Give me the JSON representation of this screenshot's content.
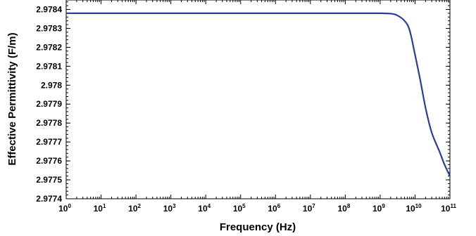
{
  "chart_data": {
    "type": "line",
    "title": "",
    "xlabel": "Frequency (Hz)",
    "ylabel": "Effective Permittivity (F/m)",
    "x_scale": "log",
    "xlim": [
      1,
      100000000000
    ],
    "ylim": [
      2.9774,
      2.97845
    ],
    "x_ticks": [
      {
        "base": "10",
        "exp": "0"
      },
      {
        "base": "10",
        "exp": "1"
      },
      {
        "base": "10",
        "exp": "2"
      },
      {
        "base": "10",
        "exp": "3"
      },
      {
        "base": "10",
        "exp": "4"
      },
      {
        "base": "10",
        "exp": "5"
      },
      {
        "base": "10",
        "exp": "6"
      },
      {
        "base": "10",
        "exp": "7"
      },
      {
        "base": "10",
        "exp": "8"
      },
      {
        "base": "10",
        "exp": "9"
      },
      {
        "base": "10",
        "exp": "10"
      },
      {
        "base": "10",
        "exp": "11"
      }
    ],
    "y_ticks": [
      "2.9774",
      "2.9775",
      "2.9776",
      "2.9777",
      "2.9778",
      "2.9779",
      "2.978",
      "2.9781",
      "2.9782",
      "2.9783",
      "2.9784"
    ],
    "grid": false,
    "line_color": "#2b3d9a",
    "series": [
      {
        "x": [
          1,
          10,
          100,
          1000,
          10000,
          100000,
          1000000,
          10000000,
          100000000,
          1000000000,
          2000000000,
          3000000000,
          5000000000,
          7000000000,
          10000000000,
          14000000000,
          20000000000,
          30000000000,
          50000000000,
          70000000000,
          100000000000
        ],
        "y": [
          2.97838,
          2.97838,
          2.97838,
          2.97838,
          2.97838,
          2.97838,
          2.97838,
          2.97838,
          2.97838,
          2.97838,
          2.978378,
          2.97837,
          2.97834,
          2.97829,
          2.97816,
          2.97803,
          2.97788,
          2.97775,
          2.97765,
          2.97758,
          2.97752
        ]
      }
    ]
  }
}
